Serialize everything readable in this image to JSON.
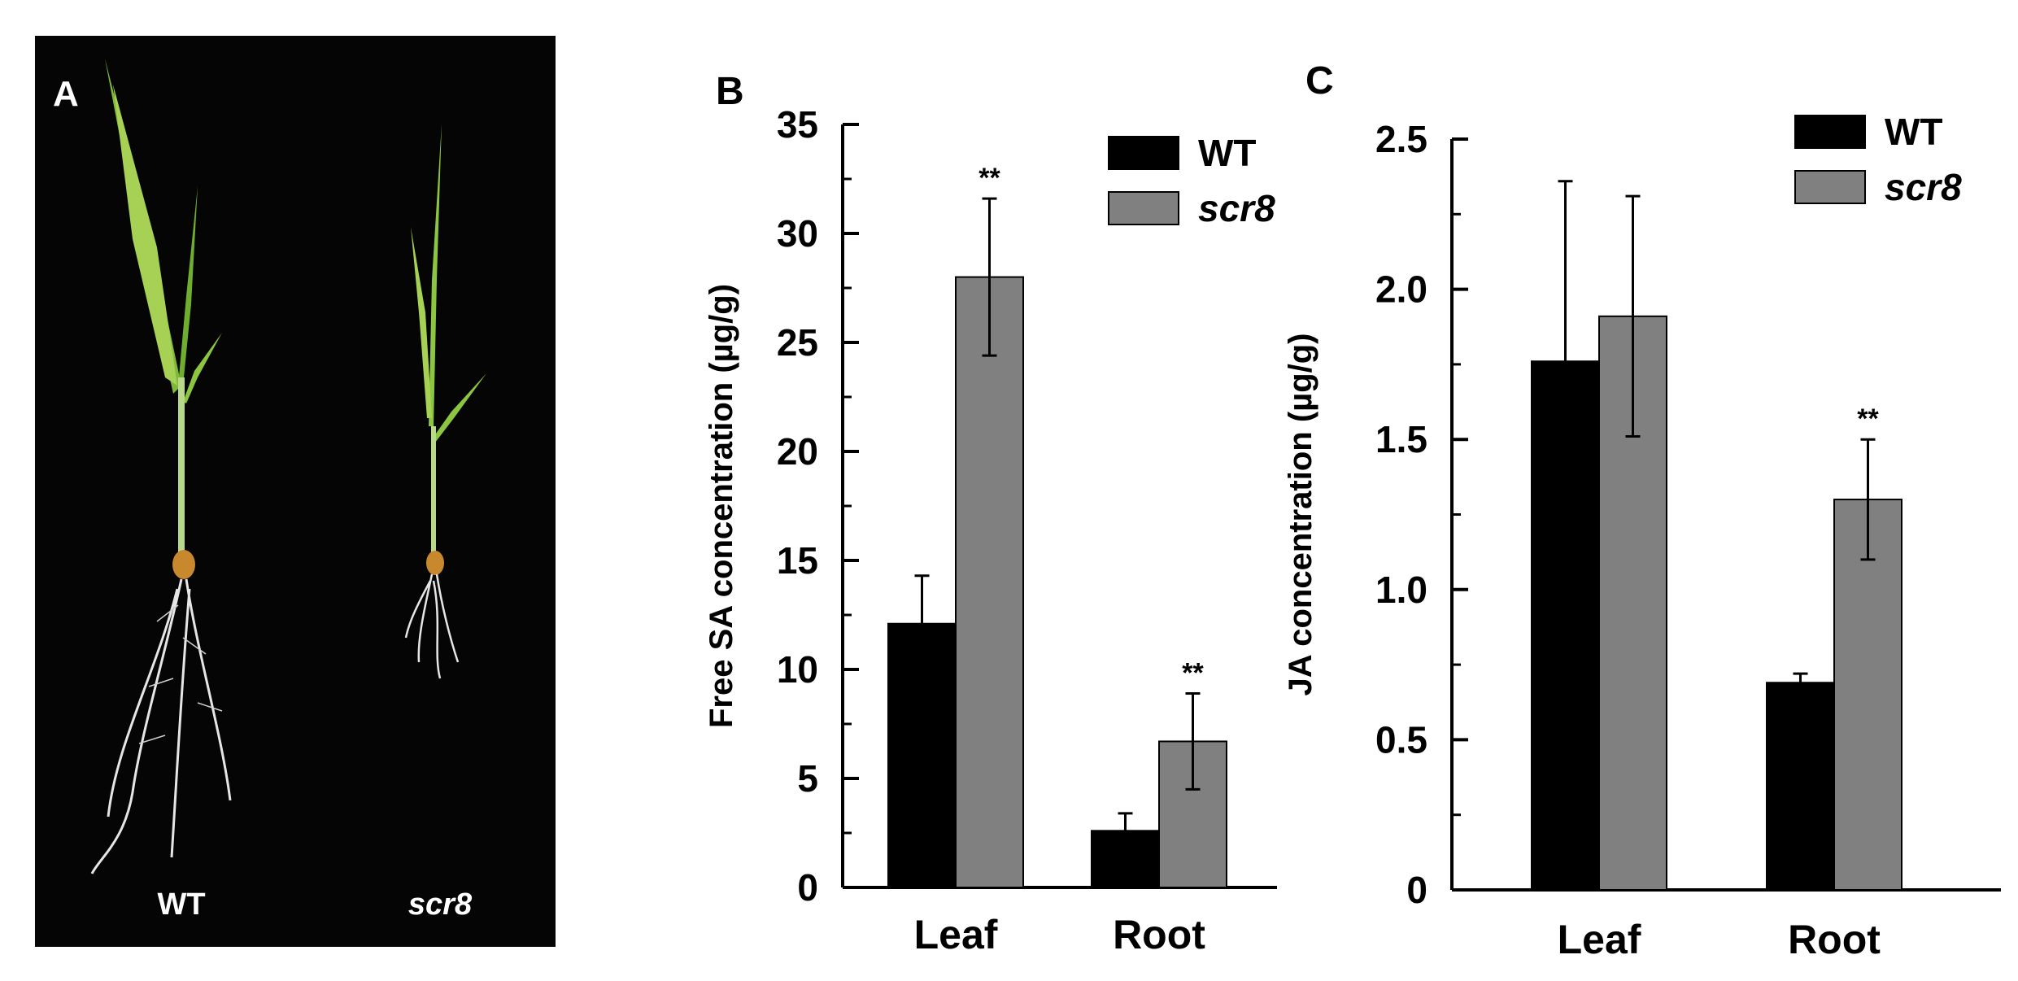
{
  "panel_a": {
    "letter": "A",
    "labels": [
      "WT",
      "scr8"
    ]
  },
  "chart_data": [
    {
      "panel_letter": "B",
      "type": "bar",
      "categories": [
        "Leaf",
        "Root"
      ],
      "series": [
        {
          "name": "WT",
          "color": "#000000",
          "values": [
            12.1,
            2.6
          ],
          "errors": [
            2.2,
            0.8
          ],
          "sig": [
            "",
            ""
          ]
        },
        {
          "name": "scr8",
          "color": "#808080",
          "values": [
            28.0,
            6.7
          ],
          "errors": [
            3.6,
            2.2
          ],
          "sig": [
            "**",
            "**"
          ]
        }
      ],
      "ylabel": "Free SA concentration (µg/g)",
      "ylim": [
        0,
        35
      ],
      "yticks": [
        0,
        5,
        10,
        15,
        20,
        25,
        30,
        35
      ],
      "ytick_labels": [
        "0",
        "5",
        "10",
        "15",
        "20",
        "25",
        "30",
        "35"
      ],
      "legend": "top-right"
    },
    {
      "panel_letter": "C",
      "type": "bar",
      "categories": [
        "Leaf",
        "Root"
      ],
      "series": [
        {
          "name": "WT",
          "color": "#000000",
          "values": [
            1.76,
            0.69
          ],
          "errors": [
            0.6,
            0.03
          ],
          "sig": [
            "",
            ""
          ]
        },
        {
          "name": "scr8",
          "color": "#808080",
          "values": [
            1.91,
            1.3
          ],
          "errors": [
            0.4,
            0.2
          ],
          "sig": [
            "",
            "**"
          ]
        }
      ],
      "ylabel": "JA concentration (µg/g)",
      "ylim": [
        0,
        2.5
      ],
      "yticks": [
        0,
        0.5,
        1.0,
        1.5,
        2.0,
        2.5
      ],
      "ytick_labels": [
        "0",
        "0.5",
        "1.0",
        "1.5",
        "2.0",
        "2.5"
      ],
      "legend": "top-right"
    }
  ]
}
